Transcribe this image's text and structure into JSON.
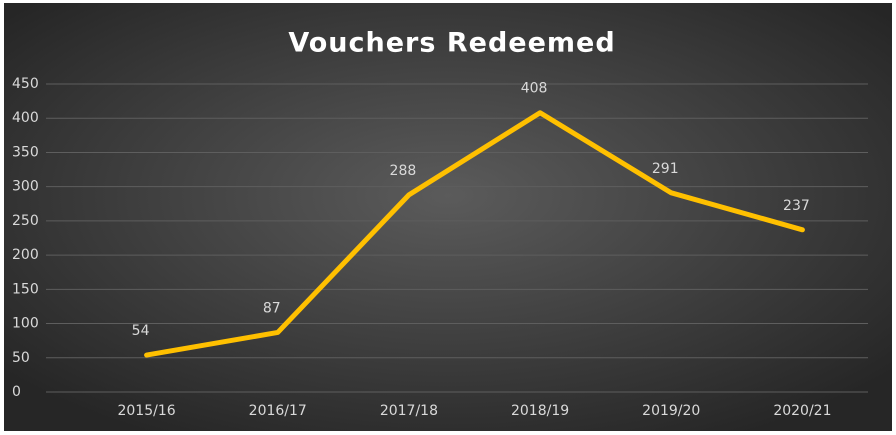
{
  "chart_data": {
    "type": "line",
    "title": "Vouchers Redeemed",
    "categories": [
      "2015/16",
      "2016/17",
      "2017/18",
      "2018/19",
      "2019/20",
      "2020/21"
    ],
    "values": [
      54,
      87,
      288,
      408,
      291,
      237
    ],
    "color": "#ffc000",
    "ylim": [
      0,
      450
    ],
    "yticks": [
      0,
      50,
      100,
      150,
      200,
      250,
      300,
      350,
      400,
      450
    ],
    "grid": true
  }
}
